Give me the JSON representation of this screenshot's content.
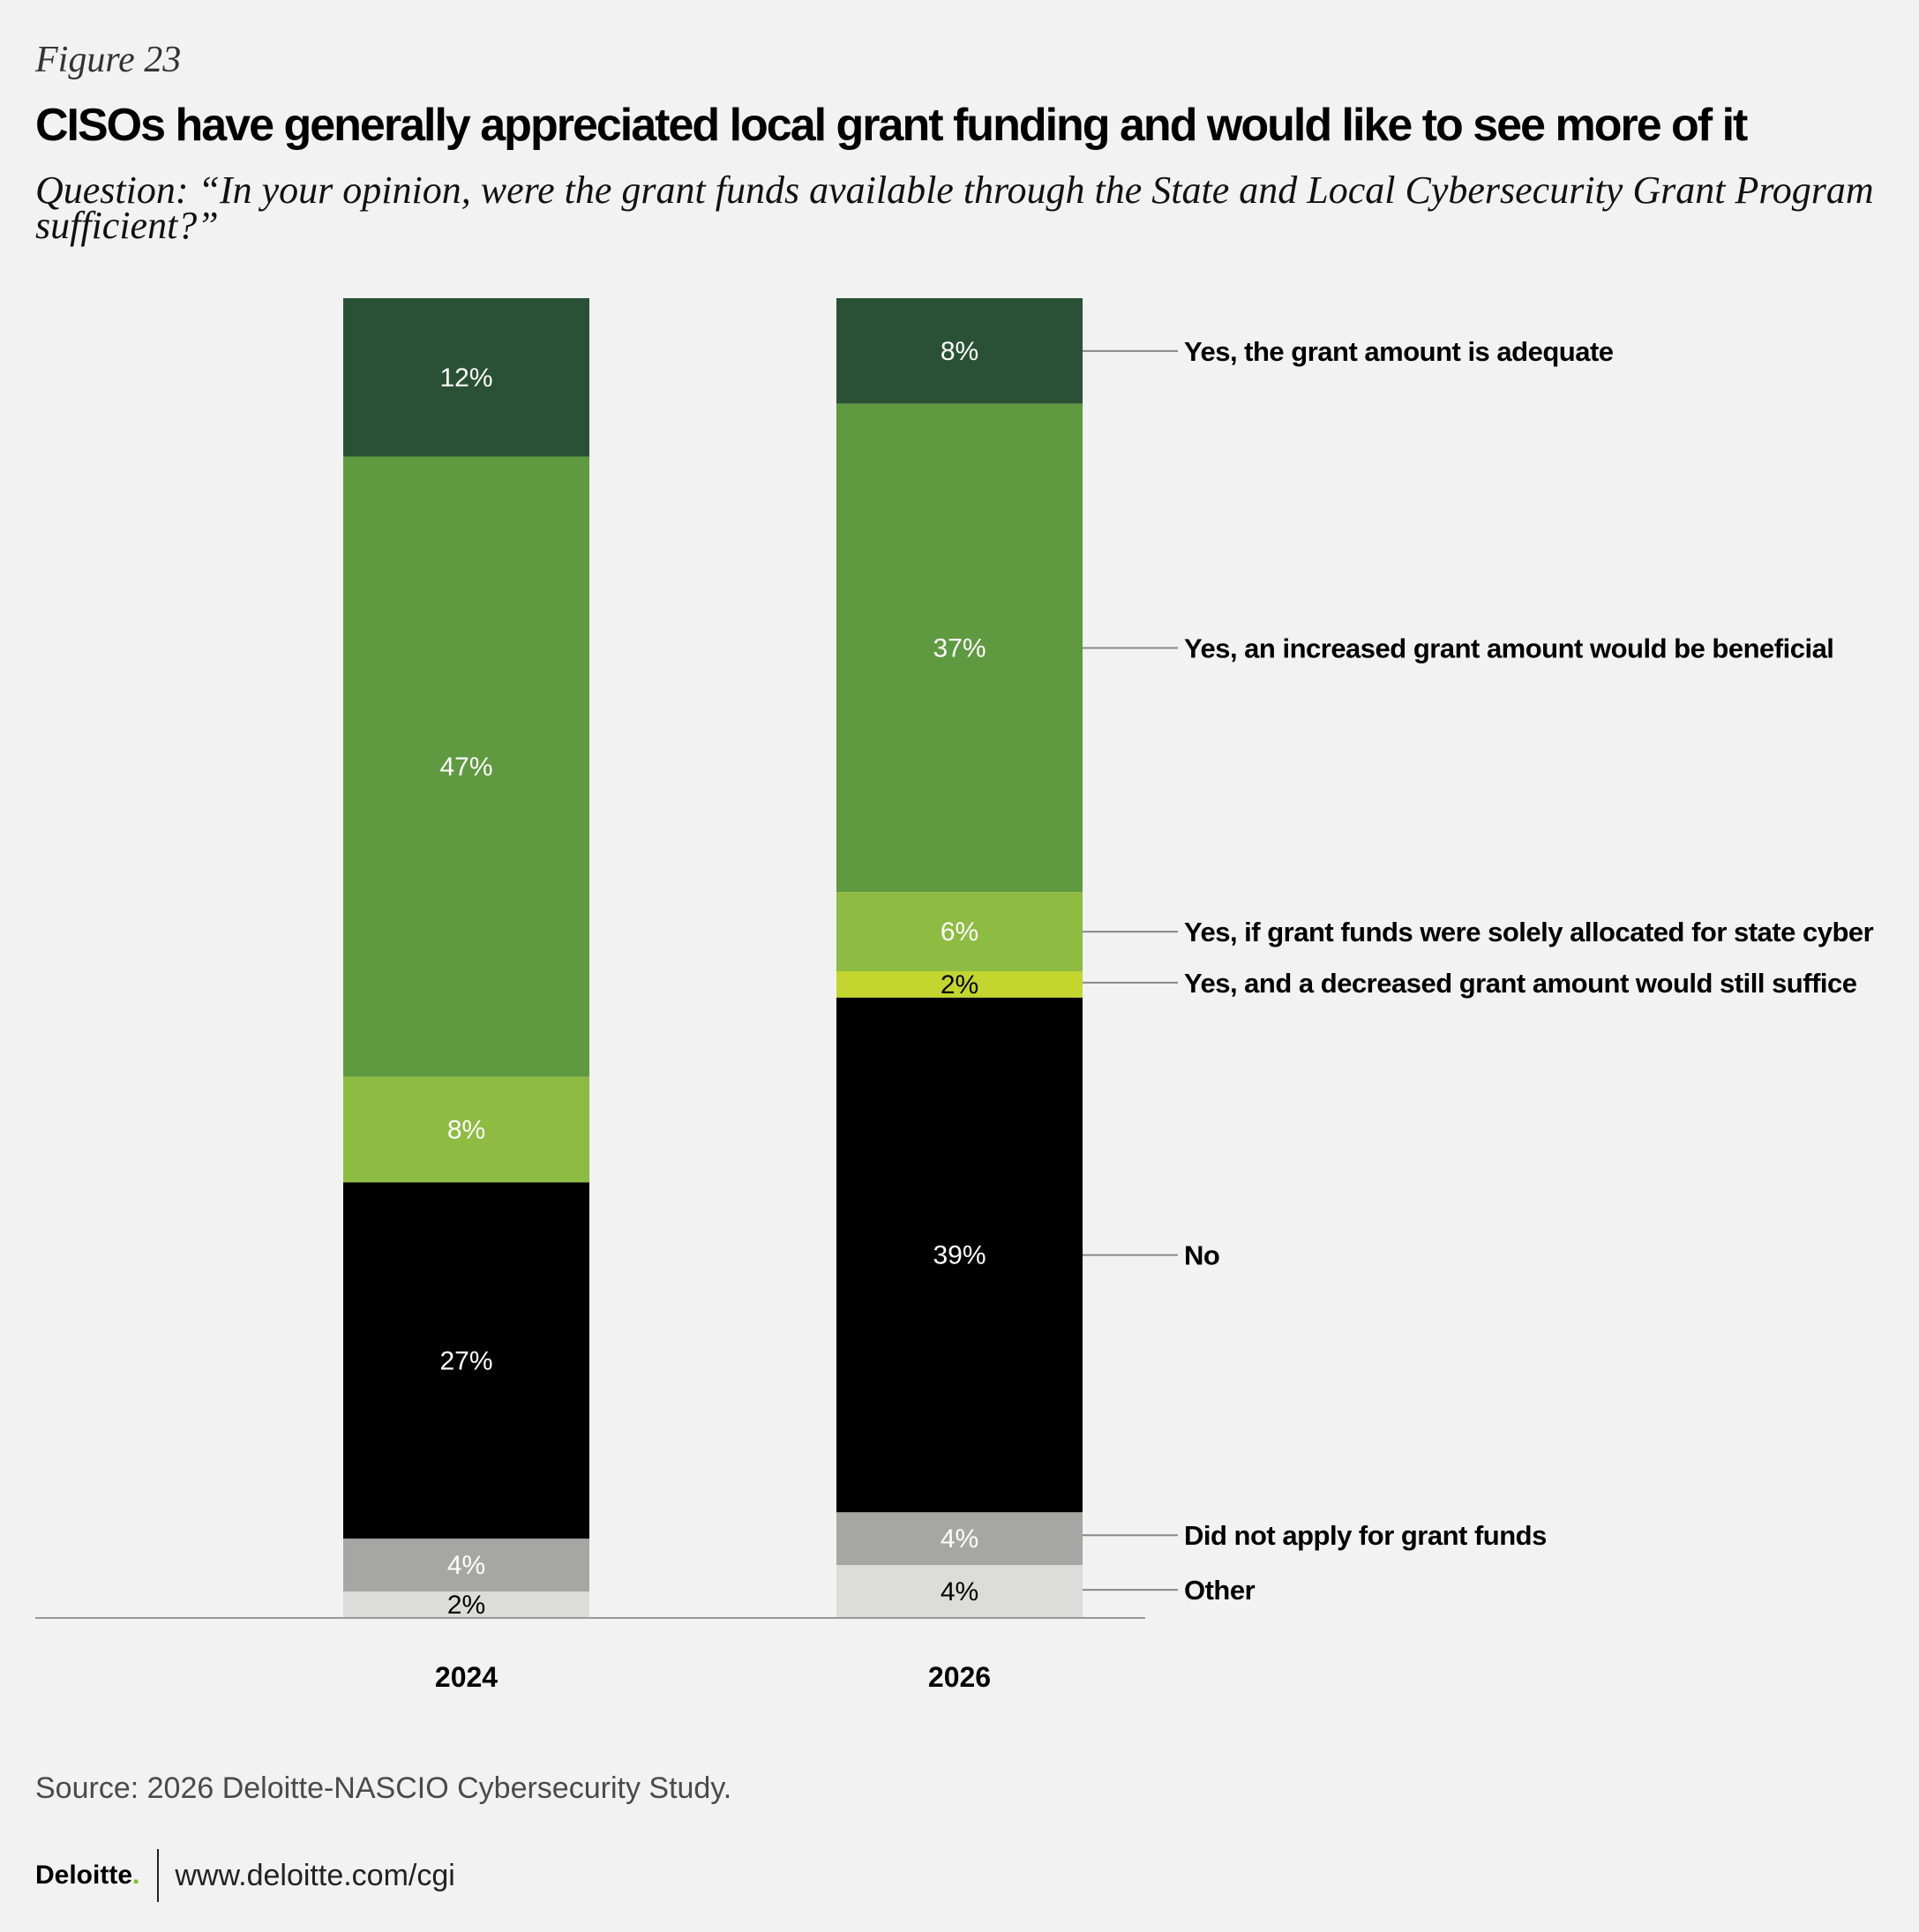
{
  "header": {
    "figure_label": "Figure 23",
    "title": "CISOs have generally appreciated local grant funding and would like to see more of it",
    "question": "Question: “In your opinion, were the grant funds available through the State and Local Cybersecurity Grant Program sufficient?”"
  },
  "chart_data": {
    "type": "bar",
    "stacked": true,
    "orientation": "vertical",
    "categories": [
      "2024",
      "2026"
    ],
    "ylim": [
      0,
      100
    ],
    "grid": false,
    "legend_placement": "right, direct labels aligned to 2026 bar",
    "series": [
      {
        "name": "Yes, the grant amount is adequate",
        "values": [
          12,
          8
        ],
        "labels": [
          "12%",
          "8%"
        ],
        "color": "#2a5135",
        "text_color": "#ffffff"
      },
      {
        "name": "Yes, an increased grant amount would be beneficial",
        "values": [
          47,
          37
        ],
        "labels": [
          "47%",
          "37%"
        ],
        "color": "#5f9940",
        "text_color": "#ffffff"
      },
      {
        "name": "Yes, if grant funds were solely allocated for state cyber",
        "values": [
          8,
          6
        ],
        "labels": [
          "8%",
          "6%"
        ],
        "color": "#8ebb42",
        "text_color": "#ffffff"
      },
      {
        "name": "Yes, and a decreased grant amount would still suffice",
        "values": [
          0,
          2
        ],
        "labels": [
          "",
          "2%"
        ],
        "color": "#c3d62f",
        "text_color": "#000000"
      },
      {
        "name": "No",
        "values": [
          27,
          39
        ],
        "labels": [
          "27%",
          "39%"
        ],
        "color": "#000000",
        "text_color": "#ffffff"
      },
      {
        "name": "Did not apply for grant funds",
        "values": [
          4,
          4
        ],
        "labels": [
          "4%",
          "4%"
        ],
        "color": "#a6a6a5",
        "text_color": "#ffffff"
      },
      {
        "name": "Other",
        "values": [
          2,
          4
        ],
        "labels": [
          "2%",
          "4%"
        ],
        "color": "#dcdcdb",
        "text_color": "#000000"
      }
    ]
  },
  "source": "Source: 2026 Deloitte-NASCIO Cybersecurity Study.",
  "footer": {
    "logo": "Deloitte",
    "logo_dot": ".",
    "url": "www.deloitte.com/cgi"
  }
}
